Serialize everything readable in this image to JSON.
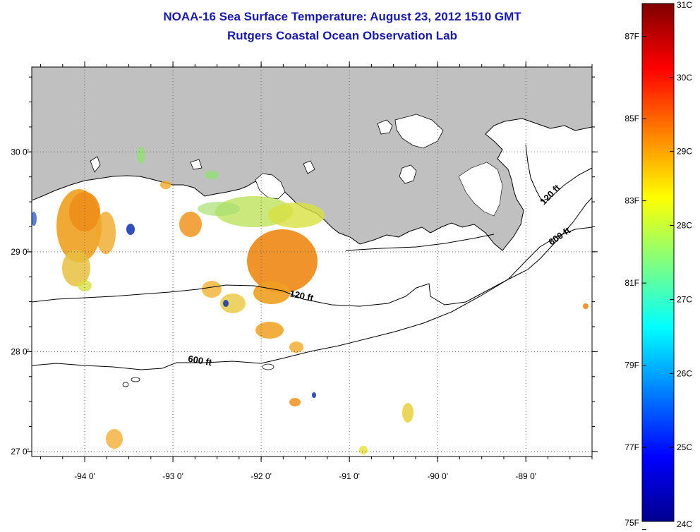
{
  "title": "NOAA-16 Sea Surface Temperature:  August 23, 2012 1510 GMT",
  "subtitle": "Rutgers Coastal Ocean Observation Lab",
  "map": {
    "x_ticks": [
      {
        "lon": -94,
        "label": "-94 0'"
      },
      {
        "lon": -93,
        "label": "-93 0'"
      },
      {
        "lon": -92,
        "label": "-92 0'"
      },
      {
        "lon": -91,
        "label": "-91 0'"
      },
      {
        "lon": -90,
        "label": "-90 0'"
      },
      {
        "lon": -89,
        "label": "-89 0'"
      }
    ],
    "y_ticks": [
      {
        "lat": 30,
        "label": "30 0'"
      },
      {
        "lat": 29,
        "label": "29 0'"
      },
      {
        "lat": 28,
        "label": "28 0'"
      },
      {
        "lat": 27,
        "label": "27 0'"
      }
    ],
    "lon_range": [
      -94.6,
      -88.25
    ],
    "lat_range": [
      26.95,
      30.85
    ],
    "land_color": "#c0c0c0",
    "contour_labels": [
      {
        "text": "120 ft",
        "lon": -91.55,
        "lat": 28.53,
        "angle": 12
      },
      {
        "text": "600 ft",
        "lon": -92.7,
        "lat": 27.88,
        "angle": 10
      },
      {
        "text": "120 ft",
        "lon": -88.7,
        "lat": 29.55,
        "angle": -45
      },
      {
        "text": "600 ft",
        "lon": -88.6,
        "lat": 29.13,
        "angle": -35
      }
    ]
  },
  "colorbar": {
    "c_labels": [
      "31C",
      "30C",
      "29C",
      "28C",
      "27C",
      "26C",
      "25C",
      "24C"
    ],
    "f_labels": [
      "87F",
      "85F",
      "83F",
      "81F",
      "79F",
      "77F",
      "75F"
    ],
    "c_min": 24,
    "c_max": 31,
    "colors": [
      "#00008f",
      "#0000ff",
      "#0080ff",
      "#00ffff",
      "#80ff80",
      "#ffff00",
      "#ff8000",
      "#ff0000",
      "#800000"
    ]
  }
}
